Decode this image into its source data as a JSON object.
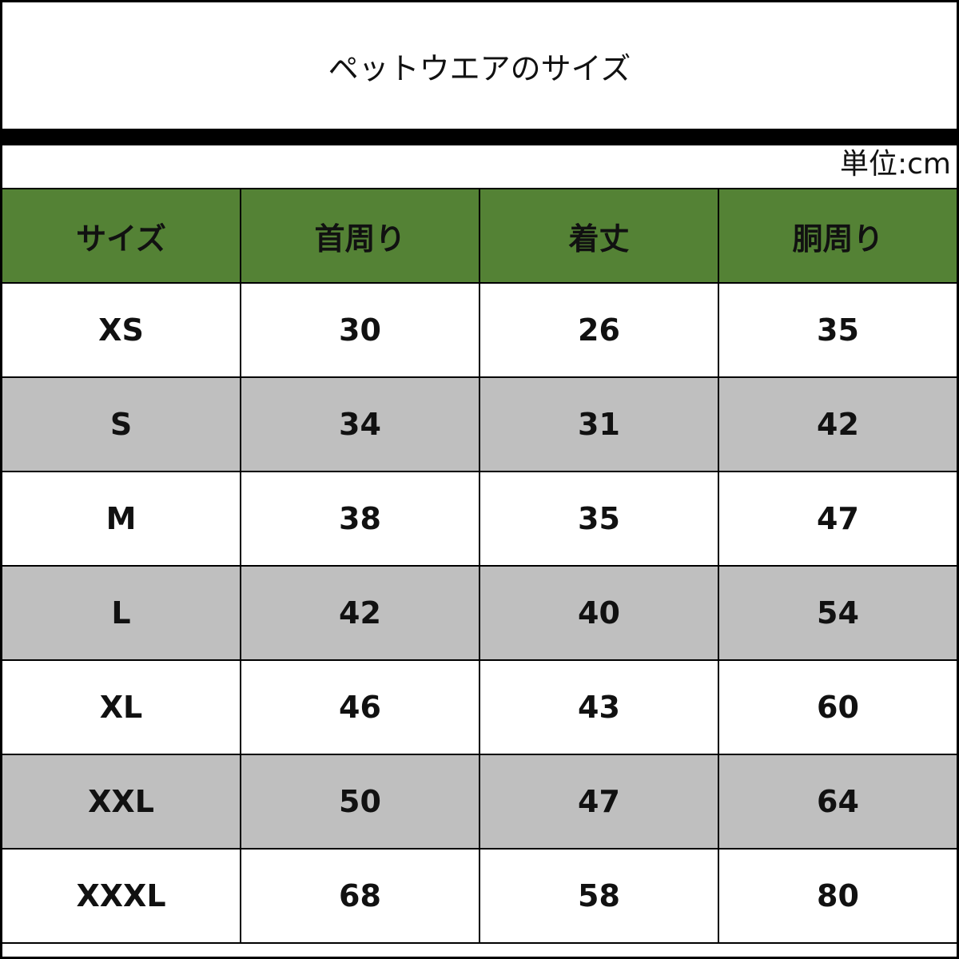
{
  "title": "ペットウエアのサイズ",
  "unit": "単位:cm",
  "colors": {
    "header_bg": "#548235",
    "alt_row_bg": "#bfbfbf"
  },
  "table": {
    "headers": [
      "サイズ",
      "首周り",
      "着丈",
      "胴周り"
    ],
    "rows": [
      [
        "XS",
        "30",
        "26",
        "35"
      ],
      [
        "S",
        "34",
        "31",
        "42"
      ],
      [
        "M",
        "38",
        "35",
        "47"
      ],
      [
        "L",
        "42",
        "40",
        "54"
      ],
      [
        "XL",
        "46",
        "43",
        "60"
      ],
      [
        "XXL",
        "50",
        "47",
        "64"
      ],
      [
        "XXXL",
        "68",
        "58",
        "80"
      ]
    ]
  }
}
